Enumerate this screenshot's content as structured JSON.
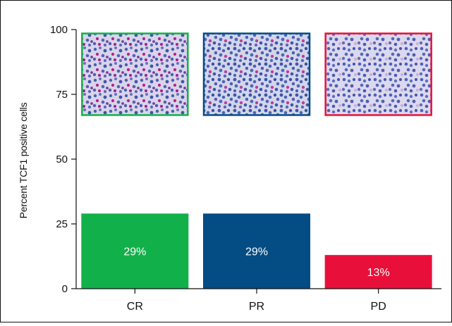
{
  "chart_data": {
    "type": "bar",
    "categories": [
      "CR",
      "PR",
      "PD"
    ],
    "values": [
      29,
      29,
      13
    ],
    "value_labels": [
      "29%",
      "29%",
      "13%"
    ],
    "ylabel": "Percent TCF1  positive cells",
    "ylim": [
      0,
      100
    ],
    "yticks": [
      "0",
      "25",
      "50",
      "75",
      "100"
    ],
    "grid": false,
    "legend": "none",
    "colors": [
      "#12b04a",
      "#044c84",
      "#e8103a"
    ],
    "inset_images": [
      {
        "category": "CR",
        "description": "immunohistochemistry micrograph",
        "border_color": "#12b04a"
      },
      {
        "category": "PR",
        "description": "immunohistochemistry micrograph",
        "border_color": "#044c84"
      },
      {
        "category": "PD",
        "description": "immunohistochemistry micrograph",
        "border_color": "#e8103a"
      }
    ]
  }
}
